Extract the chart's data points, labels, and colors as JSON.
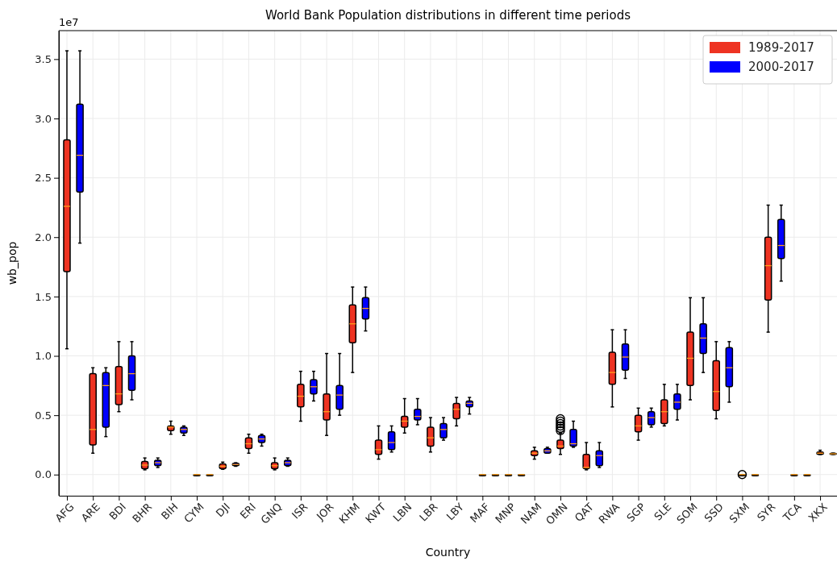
{
  "chart_data": {
    "type": "box",
    "title": "World Bank Population distributions in different time periods",
    "xlabel": "Country",
    "ylabel": "wb_pop",
    "annotations": [
      "1e7"
    ],
    "categories": [
      "AFG",
      null,
      "ARE",
      null,
      "BDI",
      null,
      "BHR",
      null,
      "BIH",
      null,
      "CYM",
      null,
      "DJI",
      null,
      "ERI",
      null,
      "GNQ",
      null,
      "ISR",
      null,
      "JOR",
      null,
      "KHM",
      null,
      "KWT",
      null,
      "LBN",
      null,
      "LBR",
      null,
      "LBY",
      null,
      "MAF",
      null,
      "MNP",
      null,
      "NAM",
      null,
      "OMN",
      null,
      "QAT",
      null,
      "RWA",
      null,
      "SGP",
      null,
      "SLE",
      null,
      "SOM",
      null,
      "SSD",
      null,
      "SXM",
      null,
      "SYR",
      null,
      "TCA",
      null,
      "XKX",
      null
    ],
    "ylim": [
      -0.178,
      3.74
    ],
    "yticks": [
      {
        "value": 0,
        "label": "0.0"
      },
      0.5,
      {
        "value": 1,
        "label": "1.0"
      },
      1.5,
      {
        "value": 2,
        "label": "2.0"
      },
      2.5,
      {
        "value": 3,
        "label": "3.0"
      },
      3.5
    ],
    "grid": true,
    "legend": "top right",
    "series": [
      {
        "name": "1989-2017",
        "color": "#ee3322",
        "boxes": [
          {
            "low": 1.06,
            "q1": 1.71,
            "median": 2.26,
            "q3": 2.82,
            "high": 3.57
          },
          null,
          {
            "low": 0.18,
            "q1": 0.25,
            "median": 0.38,
            "q3": 0.85,
            "high": 0.9
          },
          null,
          {
            "low": 0.53,
            "q1": 0.59,
            "median": 0.68,
            "q3": 0.91,
            "high": 1.12
          },
          null,
          {
            "low": 0.04,
            "q1": 0.05,
            "median": 0.08,
            "q3": 0.11,
            "high": 0.14
          },
          null,
          {
            "low": 0.34,
            "q1": 0.37,
            "median": 0.4,
            "q3": 0.41,
            "high": 0.45
          },
          null,
          {
            "low": 0,
            "q1": 0,
            "median": 0,
            "q3": 0,
            "high": 0
          },
          null,
          {
            "low": 0.045,
            "q1": 0.05,
            "median": 0.07,
            "q3": 0.09,
            "high": 0.105
          },
          null,
          {
            "low": 0.18,
            "q1": 0.22,
            "median": 0.26,
            "q3": 0.31,
            "high": 0.34
          },
          null,
          {
            "low": 0.04,
            "q1": 0.05,
            "median": 0.075,
            "q3": 0.1,
            "high": 0.14
          },
          null,
          {
            "low": 0.45,
            "q1": 0.57,
            "median": 0.66,
            "q3": 0.76,
            "high": 0.87
          },
          null,
          {
            "low": 0.33,
            "q1": 0.46,
            "median": 0.53,
            "q3": 0.68,
            "high": 1.02
          },
          null,
          {
            "low": 0.86,
            "q1": 1.11,
            "median": 1.27,
            "q3": 1.43,
            "high": 1.58
          },
          null,
          {
            "low": 0.13,
            "q1": 0.17,
            "median": 0.21,
            "q3": 0.29,
            "high": 0.41
          },
          null,
          {
            "low": 0.35,
            "q1": 0.4,
            "median": 0.45,
            "q3": 0.49,
            "high": 0.64
          },
          null,
          {
            "low": 0.19,
            "q1": 0.24,
            "median": 0.31,
            "q3": 0.4,
            "high": 0.48
          },
          null,
          {
            "low": 0.41,
            "q1": 0.47,
            "median": 0.55,
            "q3": 0.6,
            "high": 0.65
          },
          null,
          {
            "low": 0,
            "q1": 0,
            "median": 0,
            "q3": 0,
            "high": 0
          },
          null,
          {
            "low": 0,
            "q1": 0,
            "median": 0,
            "q3": 0,
            "high": 0
          },
          null,
          {
            "low": 0.13,
            "q1": 0.16,
            "median": 0.18,
            "q3": 0.2,
            "high": 0.23
          },
          null,
          {
            "low": 0.17,
            "q1": 0.22,
            "median": 0.24,
            "q3": 0.29,
            "high": 0.35,
            "outliers": [
              0.37,
              0.39,
              0.41,
              0.43,
              0.45,
              0.47
            ]
          },
          null,
          {
            "low": 0.04,
            "q1": 0.05,
            "median": 0.06,
            "q3": 0.17,
            "high": 0.27
          },
          null,
          {
            "low": 0.57,
            "q1": 0.76,
            "median": 0.86,
            "q3": 1.03,
            "high": 1.22
          },
          null,
          {
            "low": 0.29,
            "q1": 0.36,
            "median": 0.41,
            "q3": 0.5,
            "high": 0.56
          },
          null,
          {
            "low": 0.41,
            "q1": 0.43,
            "median": 0.53,
            "q3": 0.63,
            "high": 0.76
          },
          null,
          {
            "low": 0.63,
            "q1": 0.75,
            "median": 0.98,
            "q3": 1.2,
            "high": 1.49
          },
          null,
          {
            "low": 0.47,
            "q1": 0.54,
            "median": 0.7,
            "q3": 0.96,
            "high": 1.12
          },
          null,
          {
            "low": 0,
            "q1": 0,
            "median": 0,
            "q3": 0,
            "high": 0,
            "outliers": [
              0
            ]
          },
          null,
          {
            "low": 1.2,
            "q1": 1.47,
            "median": 1.76,
            "q3": 2.0,
            "high": 2.27
          },
          null,
          {
            "low": 0,
            "q1": 0,
            "median": 0,
            "q3": 0,
            "high": 0
          },
          null,
          {
            "low": 0.17,
            "q1": 0.17,
            "median": 0.18,
            "q3": 0.19,
            "high": 0.205
          },
          null
        ]
      },
      {
        "name": "2000-2017",
        "color": "#0000ff",
        "boxes": [
          null,
          {
            "low": 1.95,
            "q1": 2.38,
            "median": 2.69,
            "q3": 3.12,
            "high": 3.57
          },
          null,
          {
            "low": 0.32,
            "q1": 0.4,
            "median": 0.75,
            "q3": 0.86,
            "high": 0.9
          },
          null,
          {
            "low": 0.63,
            "q1": 0.71,
            "median": 0.85,
            "q3": 1.0,
            "high": 1.12
          },
          null,
          {
            "low": 0.06,
            "q1": 0.075,
            "median": 0.1,
            "q3": 0.12,
            "high": 0.14
          },
          null,
          {
            "low": 0.33,
            "q1": 0.35,
            "median": 0.38,
            "q3": 0.4,
            "high": 0.41
          },
          null,
          {
            "low": 0,
            "q1": 0,
            "median": 0,
            "q3": 0,
            "high": 0
          },
          null,
          {
            "low": 0.07,
            "q1": 0.075,
            "median": 0.085,
            "q3": 0.095,
            "high": 0.1
          },
          null,
          {
            "low": 0.24,
            "q1": 0.27,
            "median": 0.3,
            "q3": 0.33,
            "high": 0.34
          },
          null,
          {
            "low": 0.07,
            "q1": 0.075,
            "median": 0.1,
            "q3": 0.12,
            "high": 0.14
          },
          null,
          {
            "low": 0.62,
            "q1": 0.68,
            "median": 0.74,
            "q3": 0.8,
            "high": 0.87
          },
          null,
          {
            "low": 0.5,
            "q1": 0.55,
            "median": 0.67,
            "q3": 0.75,
            "high": 1.02
          },
          null,
          {
            "low": 1.21,
            "q1": 1.31,
            "median": 1.4,
            "q3": 1.49,
            "high": 1.58
          },
          null,
          {
            "low": 0.19,
            "q1": 0.21,
            "median": 0.27,
            "q3": 0.36,
            "high": 0.41
          },
          null,
          {
            "low": 0.42,
            "q1": 0.46,
            "median": 0.49,
            "q3": 0.55,
            "high": 0.64
          },
          null,
          {
            "low": 0.29,
            "q1": 0.31,
            "median": 0.38,
            "q3": 0.43,
            "high": 0.48
          },
          null,
          {
            "low": 0.51,
            "q1": 0.57,
            "median": 0.6,
            "q3": 0.62,
            "high": 0.65
          },
          null,
          {
            "low": 0,
            "q1": 0,
            "median": 0,
            "q3": 0,
            "high": 0
          },
          null,
          {
            "low": 0,
            "q1": 0,
            "median": 0,
            "q3": 0,
            "high": 0
          },
          null,
          {
            "low": 0.18,
            "q1": 0.18,
            "median": 0.2,
            "q3": 0.22,
            "high": 0.23
          },
          null,
          {
            "low": 0.23,
            "q1": 0.24,
            "median": 0.26,
            "q3": 0.38,
            "high": 0.45
          },
          null,
          {
            "low": 0.06,
            "q1": 0.075,
            "median": 0.16,
            "q3": 0.2,
            "high": 0.27
          },
          null,
          {
            "low": 0.81,
            "q1": 0.88,
            "median": 0.99,
            "q3": 1.1,
            "high": 1.22
          },
          null,
          {
            "low": 0.4,
            "q1": 0.42,
            "median": 0.48,
            "q3": 0.53,
            "high": 0.56
          },
          null,
          {
            "low": 0.46,
            "q1": 0.55,
            "median": 0.61,
            "q3": 0.68,
            "high": 0.76
          },
          null,
          {
            "low": 0.86,
            "q1": 1.02,
            "median": 1.15,
            "q3": 1.27,
            "high": 1.49
          },
          null,
          {
            "low": 0.61,
            "q1": 0.74,
            "median": 0.9,
            "q3": 1.07,
            "high": 1.12
          },
          null,
          {
            "low": 0,
            "q1": 0,
            "median": 0,
            "q3": 0,
            "high": 0
          },
          null,
          {
            "low": 1.63,
            "q1": 1.82,
            "median": 1.93,
            "q3": 2.15,
            "high": 2.27
          },
          null,
          {
            "low": 0,
            "q1": 0,
            "median": 0,
            "q3": 0,
            "high": 0
          },
          null,
          {
            "low": 0.17,
            "q1": 0.17,
            "median": 0.175,
            "q3": 0.18,
            "high": 0.18
          }
        ]
      }
    ]
  }
}
